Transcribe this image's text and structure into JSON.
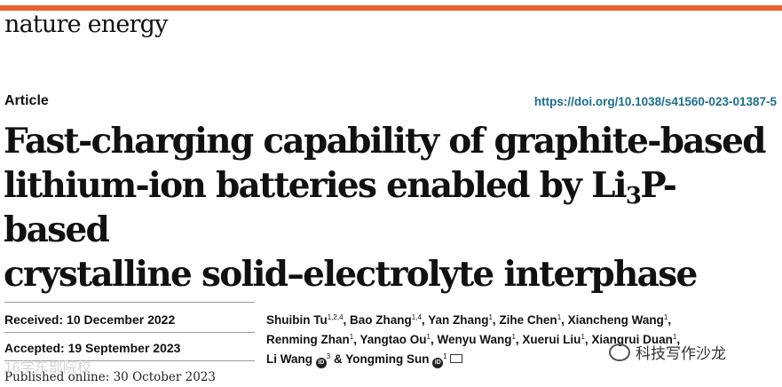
{
  "journal": "nature energy",
  "article_type": "Article",
  "doi": "https://doi.org/10.1038/s41560-023-01387-5",
  "title": {
    "line1": "Fast-charging capability of graphite-based",
    "line2_pre": "lithium-ion batteries enabled by Li",
    "line2_sub": "3",
    "line2_post": "P-based",
    "line3": "crystalline solid–electrolyte interphase"
  },
  "dates": {
    "received_label": "Received:",
    "received": "10 December 2022",
    "accepted_label": "Accepted:",
    "accepted": "19 September 2023",
    "published_label": "Published online:",
    "published": "30 October 2023"
  },
  "authors": [
    {
      "name": "Shuibin Tu",
      "aff": "1,2,4"
    },
    {
      "name": "Bao Zhang",
      "aff": "1,4"
    },
    {
      "name": "Yan Zhang",
      "aff": "1"
    },
    {
      "name": "Zihe Chen",
      "aff": "1"
    },
    {
      "name": "Xiancheng Wang",
      "aff": "1"
    },
    {
      "name": "Renming Zhan",
      "aff": "1"
    },
    {
      "name": "Yangtao Ou",
      "aff": "1"
    },
    {
      "name": "Wenyu Wang",
      "aff": "1"
    },
    {
      "name": "Xuerui Liu",
      "aff": "1"
    },
    {
      "name": "Xiangrui Duan",
      "aff": "1"
    },
    {
      "name": "Li Wang",
      "aff": "3"
    },
    {
      "name": "Yongming Sun",
      "aff": "1"
    }
  ],
  "watermark": {
    "left": "16学东部院校",
    "right": "科技写作沙龙"
  },
  "icons": [
    "orcid-icon",
    "mail-icon",
    "wechat-icon"
  ],
  "accent_color": "#e8602c",
  "link_color": "#1c6e8c"
}
